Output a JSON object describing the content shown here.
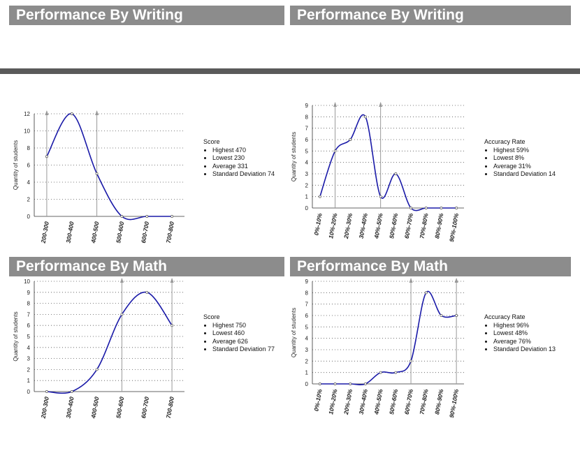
{
  "headers": {
    "top_left": "Performance By Writing",
    "top_right": "Performance By Writing",
    "bottom_left": "Performance By Math",
    "bottom_right": "Performance By Math"
  },
  "colors": {
    "header_bg": "#8c8c8c",
    "separator": "#5a5a5a",
    "series": "#1a1aa8",
    "marker_line": "#999999"
  },
  "chart_data": [
    {
      "id": "writing-score",
      "type": "line",
      "ylabel": "Quantity of students",
      "categories": [
        "200-300",
        "300-400",
        "400-500",
        "500-600",
        "600-700",
        "700-800"
      ],
      "values": [
        7,
        12,
        5,
        0,
        0,
        0
      ],
      "ylim": [
        0,
        12
      ],
      "yticks": [
        0,
        2,
        4,
        6,
        8,
        10,
        12
      ],
      "markers": [
        0,
        2
      ],
      "grid": true,
      "stats": {
        "title": "Score",
        "items": [
          "Highest 470",
          "Lowest 230",
          "Average 331",
          "Standard Deviation 74"
        ]
      }
    },
    {
      "id": "writing-accuracy",
      "type": "line",
      "ylabel": "Quantity of students",
      "categories": [
        "0%-10%",
        "10%-20%",
        "20%-30%",
        "30%-40%",
        "40%-50%",
        "50%-60%",
        "60%-70%",
        "70%-80%",
        "80%-90%",
        "90%-100%"
      ],
      "values": [
        1,
        5,
        6,
        8,
        1,
        3,
        0,
        0,
        0,
        0
      ],
      "ylim": [
        0,
        9
      ],
      "yticks": [
        0,
        1,
        2,
        3,
        4,
        5,
        6,
        7,
        8,
        9
      ],
      "markers": [
        1,
        4
      ],
      "grid": true,
      "stats": {
        "title": "Accuracy Rate",
        "items": [
          "Highest 59%",
          "Lowest 8%",
          "Average 31%",
          "Standard Deviation 14"
        ]
      }
    },
    {
      "id": "math-score",
      "type": "line",
      "ylabel": "Quantity of students",
      "categories": [
        "200-300",
        "300-400",
        "400-500",
        "500-600",
        "600-700",
        "700-800"
      ],
      "values": [
        0,
        0,
        2,
        7,
        9,
        6
      ],
      "ylim": [
        0,
        10
      ],
      "yticks": [
        0,
        1,
        2,
        3,
        4,
        5,
        6,
        7,
        8,
        9,
        10
      ],
      "markers": [
        3,
        5
      ],
      "grid": true,
      "stats": {
        "title": "Score",
        "items": [
          "Highest 750",
          "Lowest 460",
          "Average 626",
          "Standard Deviation 77"
        ]
      }
    },
    {
      "id": "math-accuracy",
      "type": "line",
      "ylabel": "Quantity of students",
      "categories": [
        "0%-10%",
        "10%-20%",
        "20%-30%",
        "30%-40%",
        "40%-50%",
        "50%-60%",
        "60%-70%",
        "70%-80%",
        "80%-90%",
        "90%-100%"
      ],
      "values": [
        0,
        0,
        0,
        0,
        1,
        1,
        2,
        8,
        6,
        6
      ],
      "ylim": [
        0,
        9
      ],
      "yticks": [
        0,
        1,
        2,
        3,
        4,
        5,
        6,
        7,
        8,
        9
      ],
      "markers": [
        6,
        9
      ],
      "grid": true,
      "stats": {
        "title": "Accuracy Rate",
        "items": [
          "Highest 96%",
          "Lowest 48%",
          "Average 76%",
          "Standard Deviation 13"
        ]
      }
    }
  ]
}
